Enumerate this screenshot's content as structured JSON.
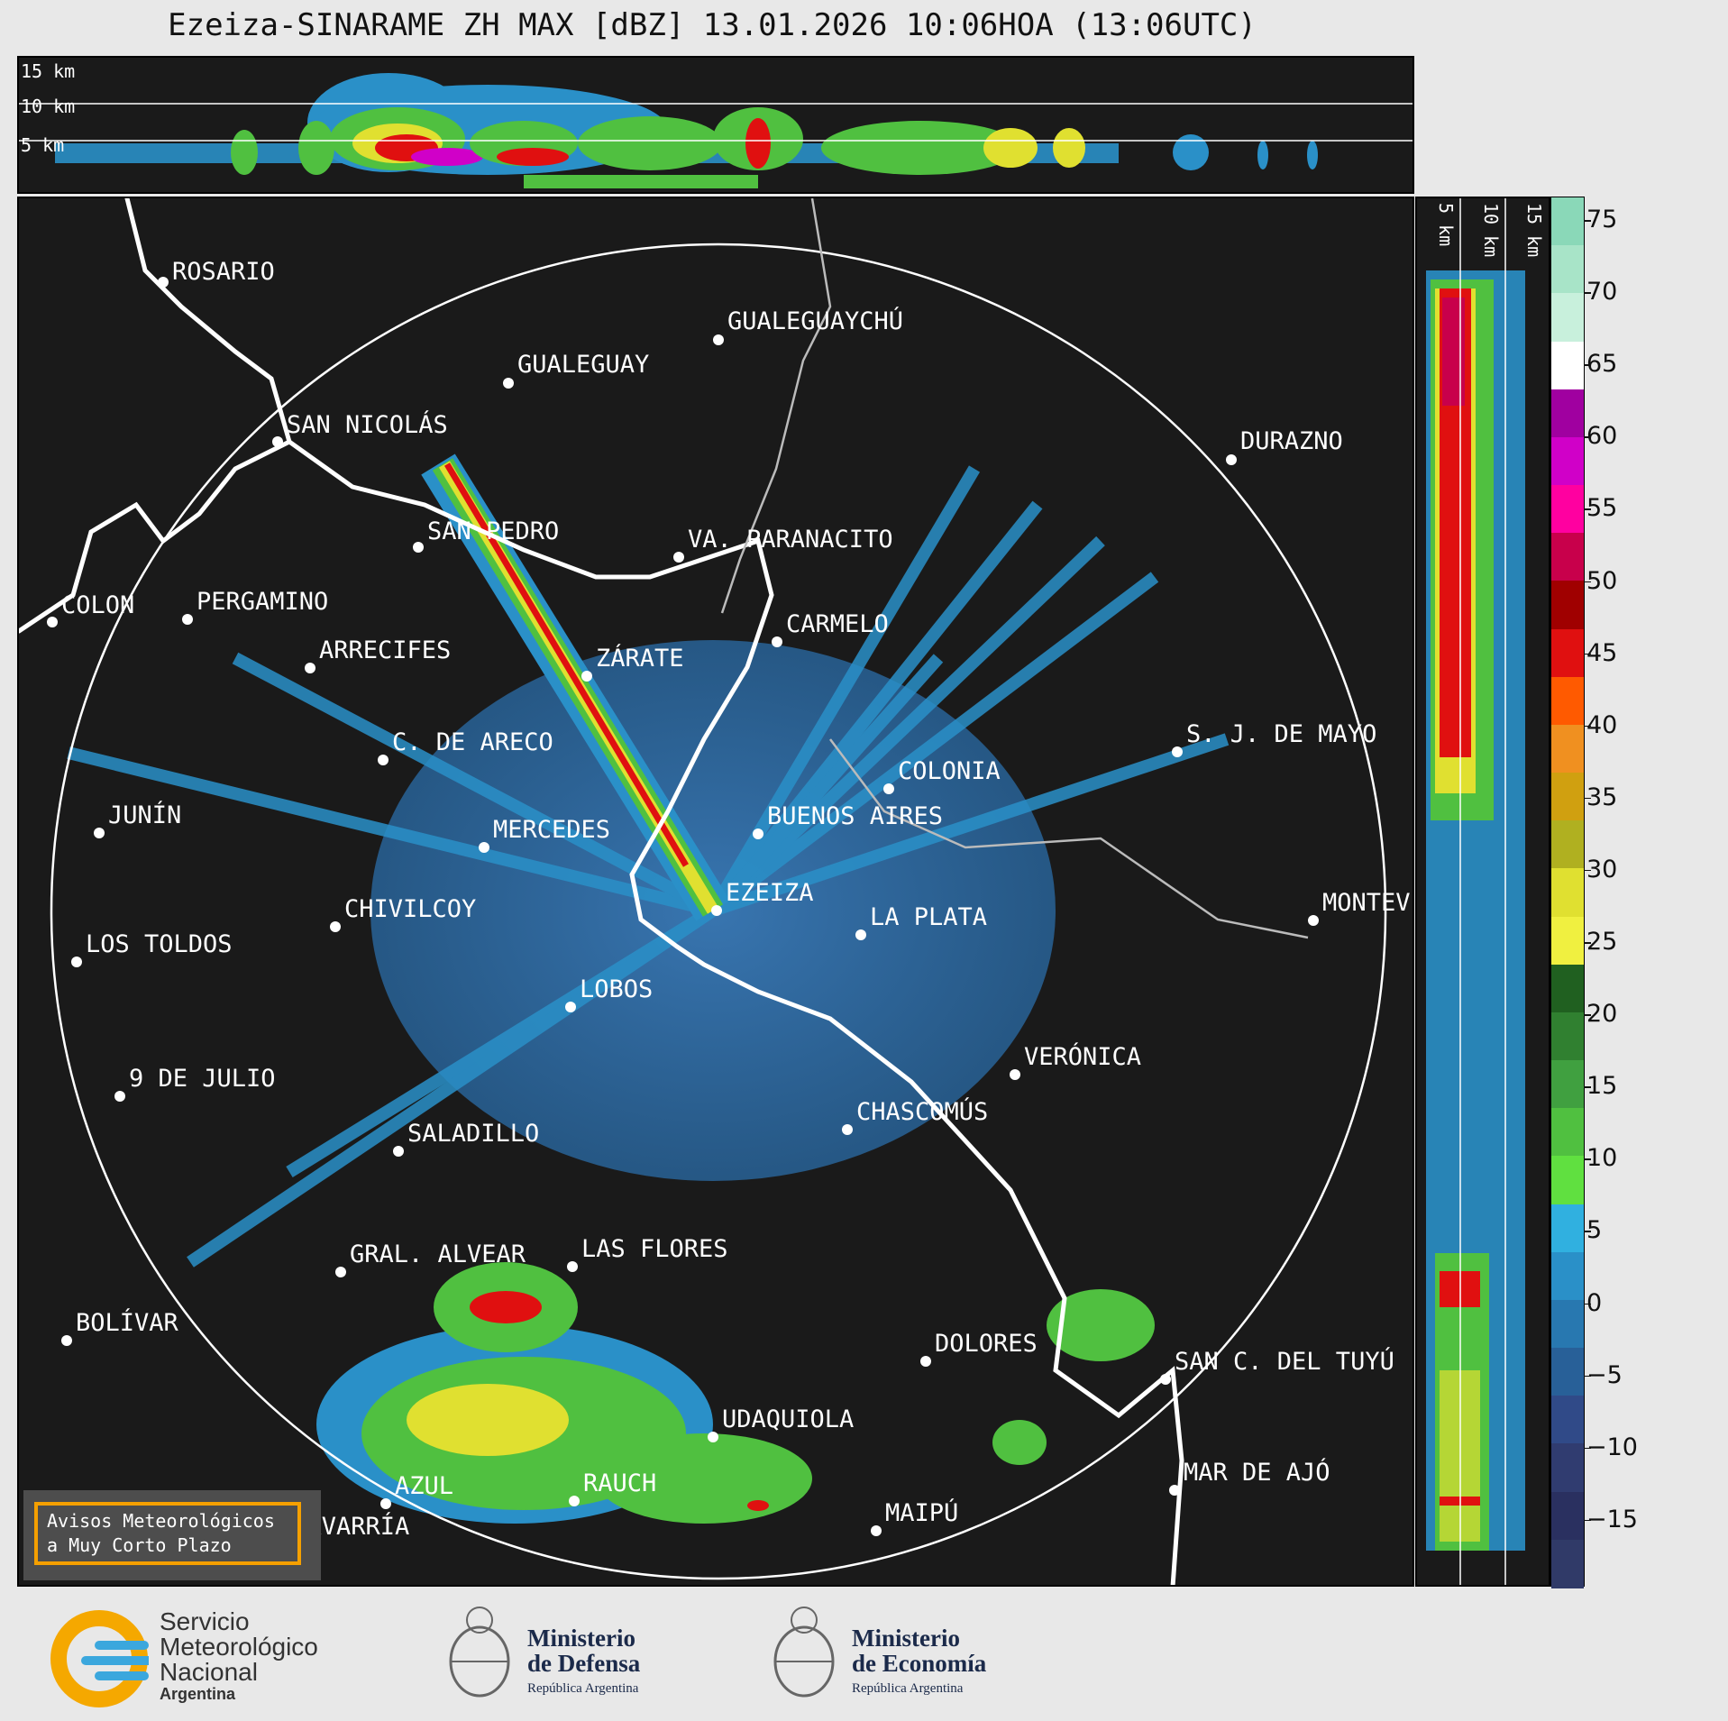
{
  "title": "Ezeiza-SINARAME ZH MAX [dBZ] 13.01.2026 10:06HOA (13:06UTC)",
  "top_panel": {
    "height_labels": [
      "15 km",
      "10 km",
      "5 km"
    ]
  },
  "side_panel": {
    "height_labels": [
      "5 km",
      "10 km",
      "15 km"
    ]
  },
  "colorbar": {
    "ticks": [
      "75",
      "70",
      "65",
      "60",
      "55",
      "50",
      "45",
      "40",
      "35",
      "30",
      "25",
      "20",
      "15",
      "10",
      "5",
      "0",
      "−5",
      "−10",
      "−15"
    ],
    "colors": [
      "#8ad8b8",
      "#a8e4c8",
      "#c8f0dc",
      "#ffffff",
      "#a000a0",
      "#d000c8",
      "#ff00a0",
      "#c8004b",
      "#a00000",
      "#e01010",
      "#ff5a00",
      "#f09020",
      "#d0a010",
      "#b0b020",
      "#e0e030",
      "#f0f040",
      "#206020",
      "#308030",
      "#40a040",
      "#50c040",
      "#60e040",
      "#30b0e0",
      "#2a90c8",
      "#2878b0",
      "#286098",
      "#304a88",
      "#303c70",
      "#2a3060",
      "#303a68"
    ]
  },
  "cities": [
    {
      "name": "ROSARIO"
    },
    {
      "name": "GUALEGUAYCHÚ"
    },
    {
      "name": "GUALEGUAY"
    },
    {
      "name": "SAN NICOLÁS"
    },
    {
      "name": "DURAZNO"
    },
    {
      "name": "SAN PEDRO"
    },
    {
      "name": "VA. PARANACITO"
    },
    {
      "name": "COLON"
    },
    {
      "name": "PERGAMINO"
    },
    {
      "name": "CARMELO"
    },
    {
      "name": "ARRECIFES"
    },
    {
      "name": "ZÁRATE"
    },
    {
      "name": "S. J. DE MAYO"
    },
    {
      "name": "C. DE ARECO"
    },
    {
      "name": "COLONIA"
    },
    {
      "name": "JUNÍN"
    },
    {
      "name": "BUENOS AIRES"
    },
    {
      "name": "MERCEDES"
    },
    {
      "name": "EZEIZA"
    },
    {
      "name": "MONTEV"
    },
    {
      "name": "CHIVILCOY"
    },
    {
      "name": "LA PLATA"
    },
    {
      "name": "LOS TOLDOS"
    },
    {
      "name": "LOBOS"
    },
    {
      "name": "VERÓNICA"
    },
    {
      "name": "9 DE JULIO"
    },
    {
      "name": "CHASCOMÚS"
    },
    {
      "name": "SALADILLO"
    },
    {
      "name": "GRAL. ALVEAR"
    },
    {
      "name": "LAS FLORES"
    },
    {
      "name": "BOLÍVAR"
    },
    {
      "name": "DOLORES"
    },
    {
      "name": "SAN C. DEL TUYÚ"
    },
    {
      "name": "UDAQUIOLA"
    },
    {
      "name": "MAR DE AJÓ"
    },
    {
      "name": "AZUL"
    },
    {
      "name": "RAUCH"
    },
    {
      "name": "OLAVARRÍA"
    },
    {
      "name": "MAIPÚ"
    }
  ],
  "avisos": {
    "line1": "Avisos Meteorológicos",
    "line2": "a Muy Corto Plazo"
  },
  "logos": {
    "smn": {
      "line1": "Servicio",
      "line2": "Meteorológico",
      "line3": "Nacional",
      "line4": "Argentina"
    },
    "defensa": {
      "line1": "Ministerio",
      "line2": "de Defensa",
      "line3": "República Argentina"
    },
    "economia": {
      "line1": "Ministerio",
      "line2": "de Economía",
      "line3": "República Argentina"
    }
  }
}
